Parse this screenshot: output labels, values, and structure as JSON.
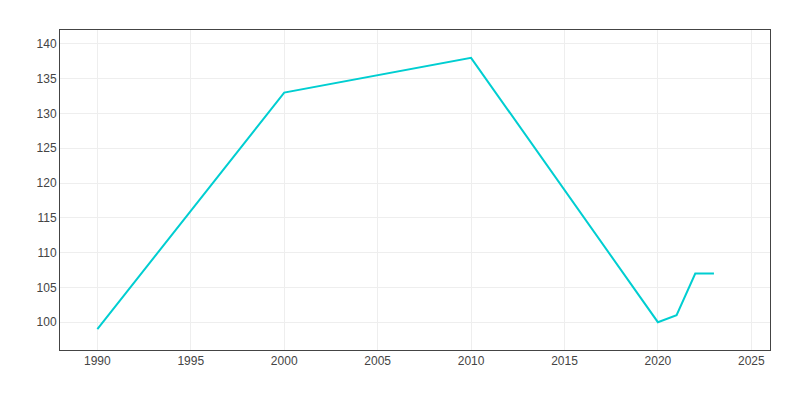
{
  "chart_data": {
    "type": "line",
    "x": [
      1990,
      2000,
      2010,
      2020,
      2021,
      2022,
      2023
    ],
    "values": [
      99,
      133,
      138,
      100,
      101,
      107,
      107
    ],
    "color": "#00CED1",
    "xlim": [
      1988,
      2026
    ],
    "ylim": [
      96,
      142
    ],
    "xticks": [
      1990,
      1995,
      2000,
      2005,
      2010,
      2015,
      2020,
      2025
    ],
    "yticks": [
      100,
      105,
      110,
      115,
      120,
      125,
      130,
      135,
      140
    ],
    "grid": true
  }
}
